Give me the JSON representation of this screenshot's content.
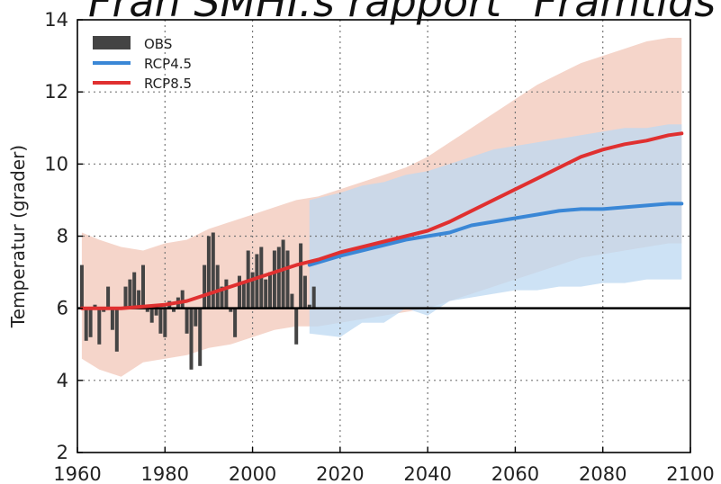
{
  "chart_data": {
    "type": "line",
    "title": "Från SMHI:s rapport \"Framtids",
    "xlabel": "",
    "ylabel": "Temperatur (grader)",
    "xlim": [
      1960,
      2100
    ],
    "ylim": [
      2,
      14
    ],
    "xticks": [
      1960,
      1980,
      2000,
      2020,
      2040,
      2060,
      2080,
      2100
    ],
    "yticks": [
      2,
      4,
      6,
      8,
      10,
      12,
      14
    ],
    "grid": true,
    "baseline": 6,
    "legend_position": "top-left",
    "legend": [
      {
        "label": "OBS",
        "kind": "bar",
        "color": "#444444"
      },
      {
        "label": "RCP4.5",
        "kind": "line",
        "color": "#3a87d6"
      },
      {
        "label": "RCP8.5",
        "kind": "line",
        "color": "#e03030"
      }
    ],
    "obs": {
      "name": "OBS",
      "color": "#444444",
      "x": [
        1961,
        1962,
        1963,
        1964,
        1965,
        1966,
        1967,
        1968,
        1969,
        1970,
        1971,
        1972,
        1973,
        1974,
        1975,
        1976,
        1977,
        1978,
        1979,
        1980,
        1981,
        1982,
        1983,
        1984,
        1985,
        1986,
        1987,
        1988,
        1989,
        1990,
        1991,
        1992,
        1993,
        1994,
        1995,
        1996,
        1997,
        1998,
        1999,
        2000,
        2001,
        2002,
        2003,
        2004,
        2005,
        2006,
        2007,
        2008,
        2009,
        2010,
        2011,
        2012,
        2013,
        2014
      ],
      "y": [
        7.2,
        5.1,
        5.2,
        6.1,
        5.0,
        5.9,
        6.6,
        5.4,
        4.8,
        6.0,
        6.6,
        6.8,
        7.0,
        6.5,
        7.2,
        5.9,
        5.6,
        5.8,
        5.3,
        5.2,
        6.2,
        5.9,
        6.3,
        6.5,
        5.3,
        4.3,
        5.5,
        4.4,
        7.2,
        8.0,
        8.1,
        7.2,
        6.6,
        6.8,
        5.9,
        5.2,
        6.9,
        6.7,
        7.6,
        7.0,
        7.5,
        7.7,
        6.8,
        7.0,
        7.6,
        7.7,
        7.9,
        7.6,
        6.4,
        5.0,
        7.8,
        6.9,
        6.1,
        6.6
      ]
    },
    "series": [
      {
        "name": "RCP4.5",
        "color": "#3a87d6",
        "band_color": "#bcd8f1",
        "x": [
          2013,
          2020,
          2025,
          2030,
          2035,
          2040,
          2045,
          2050,
          2055,
          2060,
          2065,
          2070,
          2075,
          2080,
          2085,
          2090,
          2095,
          2098
        ],
        "y": [
          7.2,
          7.45,
          7.6,
          7.75,
          7.9,
          8.0,
          8.1,
          8.3,
          8.4,
          8.5,
          8.6,
          8.7,
          8.75,
          8.75,
          8.8,
          8.85,
          8.9,
          8.9
        ],
        "band_low": [
          5.3,
          5.2,
          5.6,
          5.6,
          6.0,
          5.8,
          6.2,
          6.3,
          6.4,
          6.5,
          6.5,
          6.6,
          6.6,
          6.7,
          6.7,
          6.8,
          6.8,
          6.8
        ],
        "band_high": [
          9.0,
          9.2,
          9.4,
          9.5,
          9.7,
          9.8,
          10.0,
          10.2,
          10.4,
          10.5,
          10.6,
          10.7,
          10.8,
          10.9,
          11.0,
          11.0,
          11.1,
          11.1
        ]
      },
      {
        "name": "RCP8.5",
        "color": "#e03030",
        "band_color": "#f2c7b8",
        "x": [
          1961,
          1965,
          1970,
          1975,
          1980,
          1985,
          1990,
          1995,
          2000,
          2005,
          2010,
          2015,
          2020,
          2025,
          2030,
          2035,
          2040,
          2045,
          2050,
          2055,
          2060,
          2065,
          2070,
          2075,
          2080,
          2085,
          2090,
          2095,
          2098
        ],
        "y": [
          6.0,
          6.0,
          6.0,
          6.05,
          6.1,
          6.2,
          6.4,
          6.6,
          6.8,
          7.0,
          7.2,
          7.35,
          7.55,
          7.7,
          7.85,
          8.0,
          8.15,
          8.4,
          8.7,
          9.0,
          9.3,
          9.6,
          9.9,
          10.2,
          10.4,
          10.55,
          10.65,
          10.8,
          10.85
        ],
        "band_low": [
          4.6,
          4.3,
          4.1,
          4.5,
          4.6,
          4.7,
          4.9,
          5.0,
          5.2,
          5.4,
          5.5,
          5.5,
          5.6,
          5.7,
          5.8,
          5.9,
          6.0,
          6.2,
          6.4,
          6.6,
          6.8,
          7.0,
          7.2,
          7.4,
          7.5,
          7.6,
          7.7,
          7.8,
          7.8
        ],
        "band_high": [
          8.1,
          7.9,
          7.7,
          7.6,
          7.8,
          7.9,
          8.2,
          8.4,
          8.6,
          8.8,
          9.0,
          9.1,
          9.3,
          9.5,
          9.7,
          9.9,
          10.2,
          10.6,
          11.0,
          11.4,
          11.8,
          12.2,
          12.5,
          12.8,
          13.0,
          13.2,
          13.4,
          13.5,
          13.5
        ]
      }
    ]
  }
}
